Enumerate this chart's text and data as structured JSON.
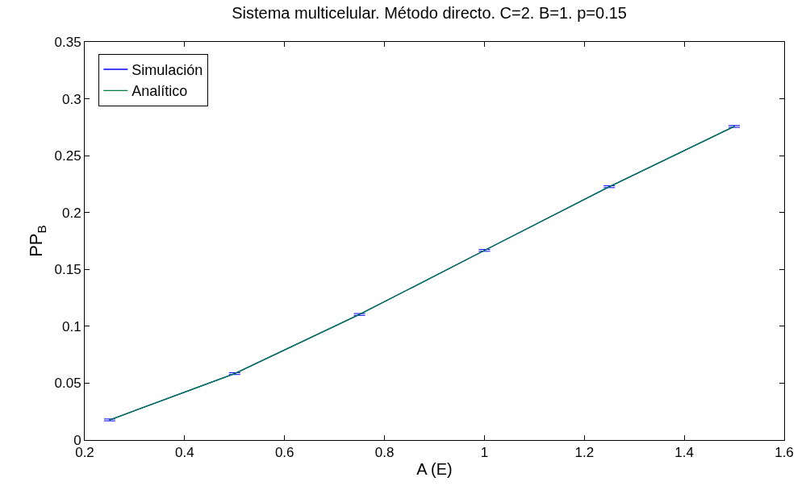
{
  "chart_data": {
    "type": "line",
    "title": "Sistema multicelular. Método directo. C=2. B=1. p=0.15",
    "xlabel": "A (E)",
    "ylabel": "PP$_{B}$",
    "x": [
      0.25,
      0.5,
      0.75,
      1.0,
      1.25,
      1.5
    ],
    "series": [
      {
        "name": "Simulación",
        "color": "#0000ff",
        "values": [
          0.0177,
          0.0584,
          0.1104,
          0.1667,
          0.2227,
          0.2757
        ],
        "errors": [
          0.0008,
          0.0008,
          0.0008,
          0.0008,
          0.0008,
          0.0008
        ]
      },
      {
        "name": "Analítico",
        "color": "#007f3f",
        "values": [
          0.0177,
          0.0584,
          0.1104,
          0.1667,
          0.2227,
          0.2757
        ]
      }
    ],
    "xlim": [
      0.2,
      1.6
    ],
    "xticks": [
      0.2,
      0.4,
      0.6,
      0.8,
      1,
      1.2,
      1.4,
      1.6
    ],
    "ylim": [
      0,
      0.35
    ],
    "yticks": [
      0,
      0.05,
      0.1,
      0.15,
      0.2,
      0.25,
      0.3,
      0.35
    ],
    "legend": "top left",
    "marker": "none",
    "line_style": "solid"
  }
}
